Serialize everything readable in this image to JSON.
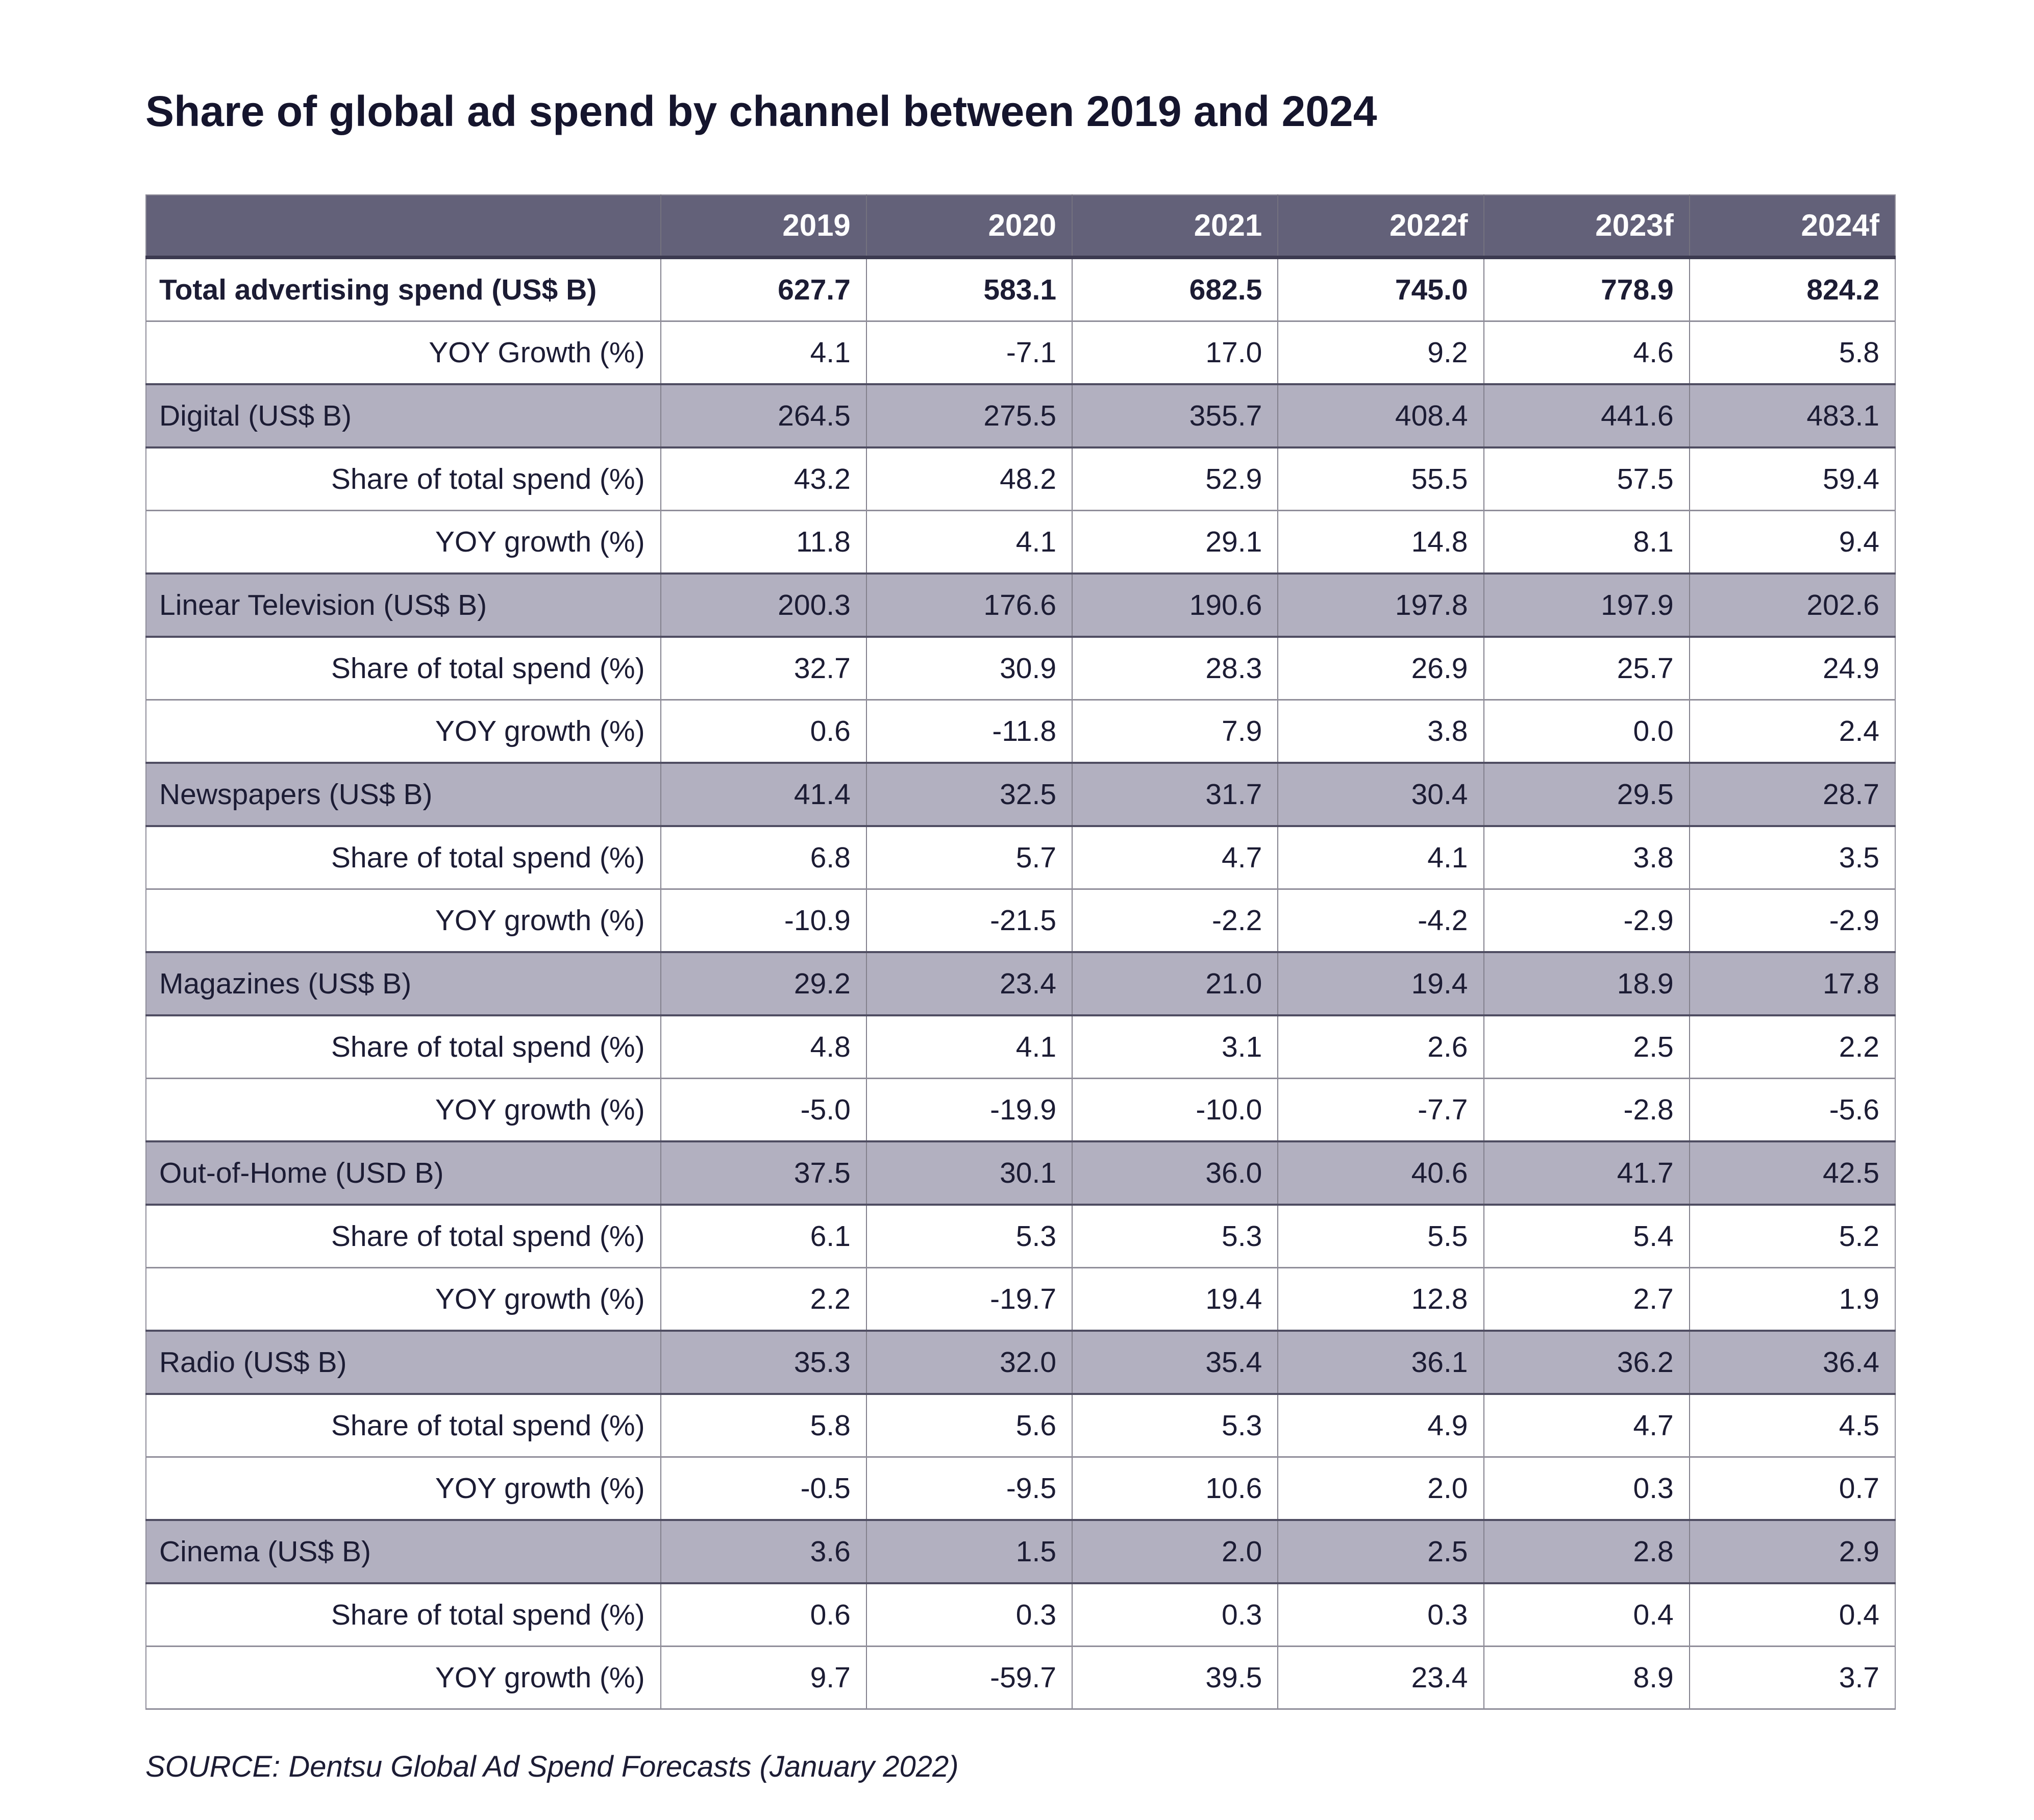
{
  "chart_data": {
    "type": "table",
    "title": "Share of global ad spend by channel between 2019 and 2024",
    "source": "SOURCE: Dentsu Global Ad Spend Forecasts (January 2022)",
    "columns": [
      "2019",
      "2020",
      "2021",
      "2022f",
      "2023f",
      "2024f"
    ],
    "rows": [
      {
        "label": "Total advertising spend (US$ B)",
        "type": "total",
        "values": [
          "627.7",
          "583.1",
          "682.5",
          "745.0",
          "778.9",
          "824.2"
        ]
      },
      {
        "label": "YOY Growth (%)",
        "type": "sub",
        "values": [
          "4.1",
          "-7.1",
          "17.0",
          "9.2",
          "4.6",
          "5.8"
        ]
      },
      {
        "label": "Digital (US$ B)",
        "type": "channel",
        "values": [
          "264.5",
          "275.5",
          "355.7",
          "408.4",
          "441.6",
          "483.1"
        ]
      },
      {
        "label": "Share of total spend (%)",
        "type": "sub",
        "values": [
          "43.2",
          "48.2",
          "52.9",
          "55.5",
          "57.5",
          "59.4"
        ]
      },
      {
        "label": "YOY growth (%)",
        "type": "sub",
        "values": [
          "11.8",
          "4.1",
          "29.1",
          "14.8",
          "8.1",
          "9.4"
        ]
      },
      {
        "label": "Linear Television (US$ B)",
        "type": "channel",
        "values": [
          "200.3",
          "176.6",
          "190.6",
          "197.8",
          "197.9",
          "202.6"
        ]
      },
      {
        "label": "Share of total spend (%)",
        "type": "sub",
        "values": [
          "32.7",
          "30.9",
          "28.3",
          "26.9",
          "25.7",
          "24.9"
        ]
      },
      {
        "label": "YOY growth (%)",
        "type": "sub",
        "values": [
          "0.6",
          "-11.8",
          "7.9",
          "3.8",
          "0.0",
          "2.4"
        ]
      },
      {
        "label": "Newspapers (US$ B)",
        "type": "channel",
        "values": [
          "41.4",
          "32.5",
          "31.7",
          "30.4",
          "29.5",
          "28.7"
        ]
      },
      {
        "label": "Share of total spend (%)",
        "type": "sub",
        "values": [
          "6.8",
          "5.7",
          "4.7",
          "4.1",
          "3.8",
          "3.5"
        ]
      },
      {
        "label": "YOY growth (%)",
        "type": "sub",
        "values": [
          "-10.9",
          "-21.5",
          "-2.2",
          "-4.2",
          "-2.9",
          "-2.9"
        ]
      },
      {
        "label": "Magazines (US$ B)",
        "type": "channel",
        "values": [
          "29.2",
          "23.4",
          "21.0",
          "19.4",
          "18.9",
          "17.8"
        ]
      },
      {
        "label": "Share of total spend (%)",
        "type": "sub",
        "values": [
          "4.8",
          "4.1",
          "3.1",
          "2.6",
          "2.5",
          "2.2"
        ]
      },
      {
        "label": "YOY growth (%)",
        "type": "sub",
        "values": [
          "-5.0",
          "-19.9",
          "-10.0",
          "-7.7",
          "-2.8",
          "-5.6"
        ]
      },
      {
        "label": "Out-of-Home (USD B)",
        "type": "channel",
        "values": [
          "37.5",
          "30.1",
          "36.0",
          "40.6",
          "41.7",
          "42.5"
        ]
      },
      {
        "label": "Share of total spend (%)",
        "type": "sub",
        "values": [
          "6.1",
          "5.3",
          "5.3",
          "5.5",
          "5.4",
          "5.2"
        ]
      },
      {
        "label": "YOY growth (%)",
        "type": "sub",
        "values": [
          "2.2",
          "-19.7",
          "19.4",
          "12.8",
          "2.7",
          "1.9"
        ]
      },
      {
        "label": "Radio (US$ B)",
        "type": "channel",
        "values": [
          "35.3",
          "32.0",
          "35.4",
          "36.1",
          "36.2",
          "36.4"
        ]
      },
      {
        "label": "Share of total spend (%)",
        "type": "sub",
        "values": [
          "5.8",
          "5.6",
          "5.3",
          "4.9",
          "4.7",
          "4.5"
        ]
      },
      {
        "label": "YOY growth (%)",
        "type": "sub",
        "values": [
          "-0.5",
          "-9.5",
          "10.6",
          "2.0",
          "0.3",
          "0.7"
        ]
      },
      {
        "label": "Cinema (US$ B)",
        "type": "channel",
        "values": [
          "3.6",
          "1.5",
          "2.0",
          "2.5",
          "2.8",
          "2.9"
        ]
      },
      {
        "label": "Share of total spend (%)",
        "type": "sub",
        "values": [
          "0.6",
          "0.3",
          "0.3",
          "0.3",
          "0.4",
          "0.4"
        ]
      },
      {
        "label": "YOY growth (%)",
        "type": "sub",
        "values": [
          "9.7",
          "-59.7",
          "39.5",
          "23.4",
          "8.9",
          "3.7"
        ]
      }
    ]
  },
  "colors": {
    "header_background": "#636179",
    "header_text": "#ffffff",
    "channel_row_background": "#b2b0c0",
    "text": "#1c1c34",
    "page_background": "#ffffff"
  }
}
